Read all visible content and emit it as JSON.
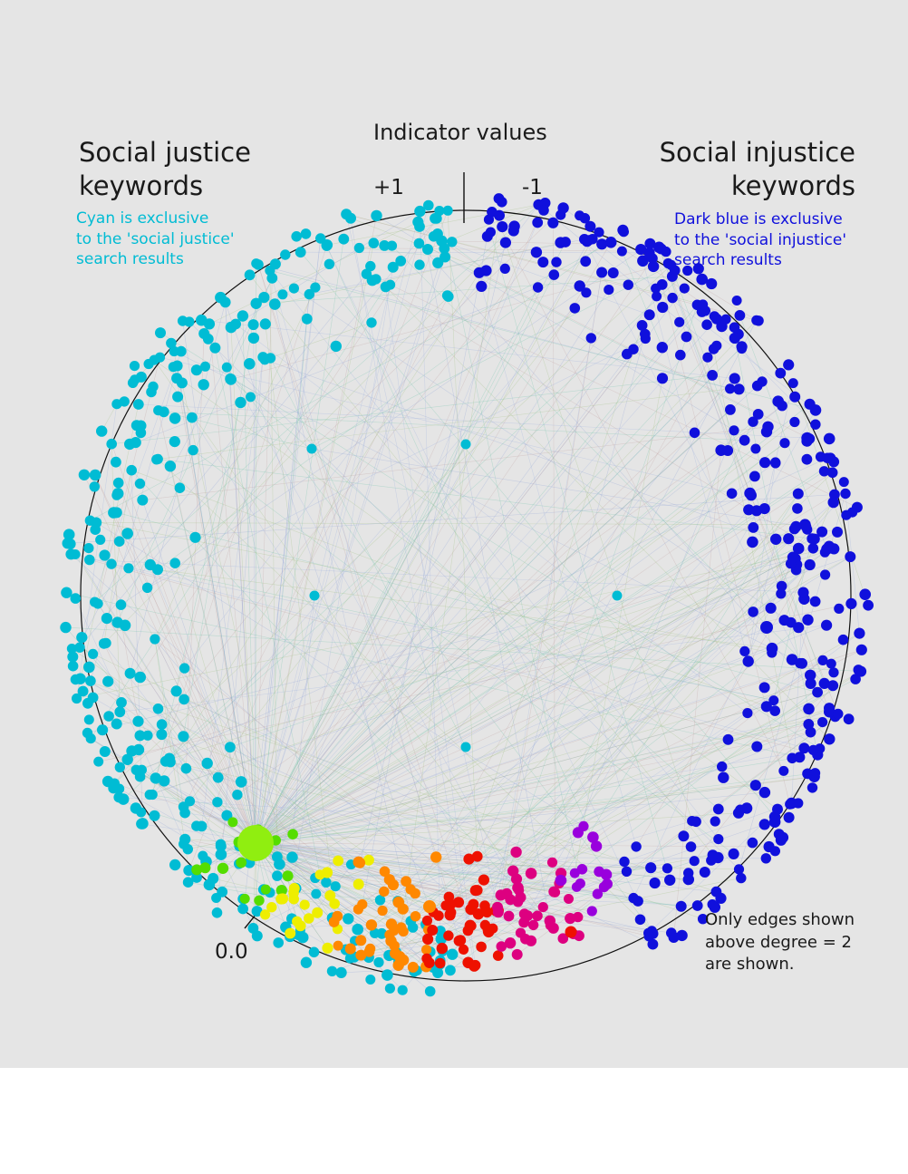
{
  "indicator_label": "Indicator values",
  "scale": {
    "left_value": "+1",
    "right_value": "-1",
    "bottom_value": "0.0"
  },
  "left_group": {
    "title_line1": "Social justice",
    "title_line2": "keywords",
    "note_lines": [
      "Cyan is exclusive",
      "to the 'social justice'",
      "search results"
    ],
    "color": "#00bcd4"
  },
  "right_group": {
    "title_line1": "Social injustice",
    "title_line2": "keywords",
    "note_lines": [
      "Dark blue is exclusive",
      "to the 'social injustice'",
      "search results"
    ],
    "color": "#1010dc"
  },
  "edge_note_lines": [
    "Only edges shown",
    "above degree = 2",
    "are shown."
  ],
  "palette": {
    "cyan": "#00bcd4",
    "dark_blue": "#1010dc",
    "lime": "#90ee10",
    "green": "#55dd00",
    "yellow": "#eeee00",
    "orange": "#ff8800",
    "red": "#ee1100",
    "magenta": "#dd0080",
    "purple": "#9900dd",
    "circle": "#111111",
    "panel": "#e5e5e5"
  }
}
